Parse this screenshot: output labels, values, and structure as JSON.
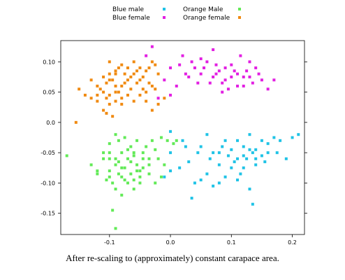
{
  "caption": "After re-scaling to (approximately) constant carapace area.",
  "chart_data": {
    "type": "scatter",
    "xlim": [
      -0.18,
      0.22
    ],
    "ylim": [
      -0.185,
      0.135
    ],
    "x_ticks": [
      -0.1,
      0.0,
      0.1,
      0.2
    ],
    "x_tick_labels": [
      "-0.1",
      "0.0",
      "0.1",
      "0.2"
    ],
    "y_ticks": [
      0.1,
      0.05,
      0.0,
      -0.05,
      -0.1,
      -0.15
    ],
    "y_tick_labels": [
      "0.10",
      "0.05",
      "0.0",
      "-0.05",
      "-0.10",
      "-0.15"
    ],
    "grid": false,
    "legend_position": "top",
    "series": [
      {
        "name": "Blue male",
        "color": "#1fc3e6",
        "points": [
          [
            0.05,
            -0.04
          ],
          [
            0.07,
            -0.05
          ],
          [
            0.09,
            -0.03
          ],
          [
            0.11,
            -0.06
          ],
          [
            0.13,
            -0.045
          ],
          [
            0.15,
            -0.055
          ],
          [
            0.03,
            -0.065
          ],
          [
            0.06,
            -0.085
          ],
          [
            0.08,
            -0.07
          ],
          [
            0.1,
            -0.075
          ],
          [
            0.12,
            -0.04
          ],
          [
            0.14,
            -0.06
          ],
          [
            0.16,
            -0.035
          ],
          [
            0.18,
            -0.03
          ],
          [
            0.2,
            -0.025
          ],
          [
            0.21,
            -0.02
          ],
          [
            0.19,
            -0.06
          ],
          [
            0.04,
            -0.1
          ],
          [
            0.07,
            -0.105
          ],
          [
            0.09,
            -0.09
          ],
          [
            0.11,
            -0.095
          ],
          [
            0.13,
            -0.11
          ],
          [
            0.135,
            -0.135
          ],
          [
            0.035,
            -0.125
          ],
          [
            0.05,
            -0.095
          ],
          [
            0.08,
            -0.05
          ],
          [
            0.1,
            -0.045
          ],
          [
            0.12,
            -0.055
          ],
          [
            0.14,
            -0.07
          ],
          [
            0.16,
            -0.05
          ],
          [
            0.17,
            -0.025
          ],
          [
            0.15,
            -0.03
          ],
          [
            0.125,
            -0.06
          ],
          [
            0.105,
            -0.065
          ],
          [
            0.085,
            -0.04
          ],
          [
            0.065,
            -0.06
          ],
          [
            0.045,
            -0.05
          ],
          [
            0.025,
            -0.04
          ],
          [
            0.015,
            -0.075
          ],
          [
            0.0,
            -0.08
          ],
          [
            -0.01,
            -0.09
          ],
          [
            0.0,
            -0.015
          ],
          [
            0.02,
            -0.03
          ],
          [
            0.06,
            -0.02
          ],
          [
            0.11,
            -0.03
          ],
          [
            0.13,
            -0.02
          ],
          [
            0.095,
            -0.055
          ],
          [
            0.115,
            -0.085
          ],
          [
            0.14,
            -0.045
          ],
          [
            0.155,
            -0.065
          ],
          [
            0.175,
            -0.05
          ],
          [
            0.08,
            -0.1
          ],
          [
            0.12,
            -0.075
          ],
          [
            0.135,
            -0.05
          ],
          [
            0.0,
            -0.05
          ]
        ]
      },
      {
        "name": "Blue female",
        "color": "#e21fe2",
        "points": [
          [
            0.0,
            0.09
          ],
          [
            0.02,
            0.11
          ],
          [
            0.04,
            0.09
          ],
          [
            0.05,
            0.08
          ],
          [
            0.06,
            0.1
          ],
          [
            0.07,
            0.12
          ],
          [
            0.08,
            0.085
          ],
          [
            0.09,
            0.07
          ],
          [
            0.1,
            0.095
          ],
          [
            0.11,
            0.08
          ],
          [
            0.12,
            0.06
          ],
          [
            0.13,
            0.075
          ],
          [
            0.14,
            0.09
          ],
          [
            0.15,
            0.07
          ],
          [
            0.16,
            0.055
          ],
          [
            0.03,
            0.075
          ],
          [
            0.05,
            0.105
          ],
          [
            0.07,
            0.075
          ],
          [
            0.09,
            0.09
          ],
          [
            0.11,
            0.06
          ],
          [
            0.085,
            0.05
          ],
          [
            0.095,
            0.055
          ],
          [
            0.065,
            0.065
          ],
          [
            0.045,
            0.065
          ],
          [
            0.025,
            0.08
          ],
          [
            0.01,
            0.06
          ],
          [
            -0.01,
            0.07
          ],
          [
            -0.02,
            0.04
          ],
          [
            -0.03,
            0.125
          ],
          [
            -0.04,
            0.11
          ],
          [
            0.0,
            0.045
          ],
          [
            0.115,
            0.11
          ],
          [
            0.13,
            0.1
          ],
          [
            0.125,
            0.085
          ],
          [
            0.105,
            0.085
          ],
          [
            0.075,
            0.095
          ],
          [
            0.055,
            0.09
          ],
          [
            0.035,
            0.1
          ],
          [
            0.015,
            0.095
          ],
          [
            0.075,
            0.08
          ],
          [
            0.17,
            0.07
          ],
          [
            0.135,
            0.065
          ],
          [
            0.145,
            0.08
          ],
          [
            0.12,
            0.075
          ],
          [
            0.1,
            0.075
          ],
          [
            0.085,
            0.065
          ]
        ]
      },
      {
        "name": "Orange Male",
        "color": "#62ea57",
        "points": [
          [
            -0.17,
            -0.055
          ],
          [
            -0.13,
            -0.07
          ],
          [
            -0.12,
            -0.08
          ],
          [
            -0.11,
            -0.05
          ],
          [
            -0.1,
            -0.06
          ],
          [
            -0.09,
            -0.07
          ],
          [
            -0.08,
            -0.09
          ],
          [
            -0.07,
            -0.06
          ],
          [
            -0.06,
            -0.05
          ],
          [
            -0.05,
            -0.08
          ],
          [
            -0.04,
            -0.04
          ],
          [
            -0.03,
            -0.03
          ],
          [
            -0.02,
            -0.06
          ],
          [
            -0.01,
            -0.07
          ],
          [
            -0.1,
            -0.09
          ],
          [
            -0.09,
            -0.11
          ],
          [
            -0.08,
            -0.12
          ],
          [
            -0.07,
            -0.1
          ],
          [
            -0.06,
            -0.11
          ],
          [
            -0.05,
            -0.09
          ],
          [
            -0.095,
            -0.145
          ],
          [
            -0.09,
            -0.175
          ],
          [
            -0.1,
            -0.035
          ],
          [
            -0.09,
            -0.02
          ],
          [
            -0.085,
            -0.03
          ],
          [
            -0.075,
            -0.025
          ],
          [
            -0.065,
            -0.04
          ],
          [
            -0.055,
            -0.03
          ],
          [
            -0.045,
            -0.05
          ],
          [
            -0.035,
            -0.06
          ],
          [
            -0.025,
            -0.045
          ],
          [
            -0.015,
            -0.025
          ],
          [
            -0.005,
            -0.03
          ],
          [
            0.005,
            -0.035
          ],
          [
            0.01,
            -0.03
          ],
          [
            -0.1,
            -0.08
          ],
          [
            -0.085,
            -0.065
          ],
          [
            -0.075,
            -0.075
          ],
          [
            -0.065,
            -0.085
          ],
          [
            -0.055,
            -0.07
          ],
          [
            -0.045,
            -0.075
          ],
          [
            -0.035,
            -0.085
          ],
          [
            -0.025,
            -0.1
          ],
          [
            -0.015,
            -0.09
          ],
          [
            -0.08,
            -0.05
          ],
          [
            -0.07,
            -0.045
          ],
          [
            -0.06,
            -0.055
          ],
          [
            -0.11,
            -0.06
          ],
          [
            -0.105,
            -0.095
          ],
          [
            -0.095,
            -0.1
          ],
          [
            -0.085,
            -0.085
          ],
          [
            -0.075,
            -0.095
          ],
          [
            -0.065,
            -0.065
          ],
          [
            -0.055,
            -0.08
          ],
          [
            -0.045,
            -0.06
          ],
          [
            -0.035,
            -0.07
          ],
          [
            -0.12,
            -0.085
          ],
          [
            -0.05,
            -0.1
          ],
          [
            -0.06,
            -0.095
          ],
          [
            -0.1,
            -0.05
          ],
          [
            -0.09,
            -0.06
          ],
          [
            -0.08,
            -0.075
          ]
        ]
      },
      {
        "name": "Orange female",
        "color": "#f08a11",
        "points": [
          [
            -0.155,
            0.0
          ],
          [
            -0.15,
            0.055
          ],
          [
            -0.14,
            0.045
          ],
          [
            -0.13,
            0.07
          ],
          [
            -0.12,
            0.06
          ],
          [
            -0.11,
            0.05
          ],
          [
            -0.1,
            0.07
          ],
          [
            -0.09,
            0.08
          ],
          [
            -0.08,
            0.06
          ],
          [
            -0.07,
            0.09
          ],
          [
            -0.06,
            0.08
          ],
          [
            -0.05,
            0.07
          ],
          [
            -0.04,
            0.05
          ],
          [
            -0.03,
            0.06
          ],
          [
            -0.1,
            0.03
          ],
          [
            -0.105,
            0.04
          ],
          [
            -0.11,
            0.02
          ],
          [
            -0.105,
            0.015
          ],
          [
            -0.095,
            0.01
          ],
          [
            -0.1,
            0.1
          ],
          [
            -0.09,
            0.085
          ],
          [
            -0.08,
            0.095
          ],
          [
            -0.06,
            0.1
          ],
          [
            -0.05,
            0.09
          ],
          [
            -0.04,
            0.085
          ],
          [
            -0.03,
            0.1
          ],
          [
            -0.02,
            0.08
          ],
          [
            -0.01,
            0.04
          ],
          [
            -0.12,
            0.045
          ],
          [
            -0.115,
            0.055
          ],
          [
            -0.105,
            0.065
          ],
          [
            -0.095,
            0.07
          ],
          [
            -0.085,
            0.05
          ],
          [
            -0.075,
            0.065
          ],
          [
            -0.065,
            0.055
          ],
          [
            -0.055,
            0.065
          ],
          [
            -0.045,
            0.075
          ],
          [
            -0.035,
            0.065
          ],
          [
            -0.025,
            0.055
          ],
          [
            -0.08,
            0.03
          ],
          [
            -0.09,
            0.035
          ],
          [
            -0.1,
            0.045
          ],
          [
            -0.07,
            0.045
          ],
          [
            -0.06,
            0.035
          ],
          [
            -0.05,
            0.045
          ],
          [
            -0.04,
            0.035
          ],
          [
            -0.03,
            0.02
          ],
          [
            -0.02,
            0.03
          ],
          [
            -0.13,
            0.04
          ],
          [
            -0.12,
            0.035
          ],
          [
            -0.11,
            0.075
          ],
          [
            -0.1,
            0.08
          ],
          [
            -0.09,
            0.06
          ],
          [
            -0.085,
            0.09
          ],
          [
            -0.075,
            0.08
          ],
          [
            -0.065,
            0.075
          ],
          [
            -0.055,
            0.085
          ],
          [
            -0.045,
            0.055
          ],
          [
            -0.035,
            0.09
          ],
          [
            -0.025,
            0.095
          ],
          [
            -0.09,
            0.05
          ],
          [
            -0.08,
            0.04
          ],
          [
            -0.07,
            0.07
          ]
        ]
      }
    ],
    "legend_rows": [
      [
        {
          "label": "Blue male",
          "color": "#1fc3e6"
        },
        {
          "label": "Orange Male",
          "color": "#62ea57"
        }
      ],
      [
        {
          "label": "Blue female",
          "color": "#e21fe2"
        },
        {
          "label": "Orange female",
          "color": "#f08a11"
        }
      ]
    ]
  }
}
